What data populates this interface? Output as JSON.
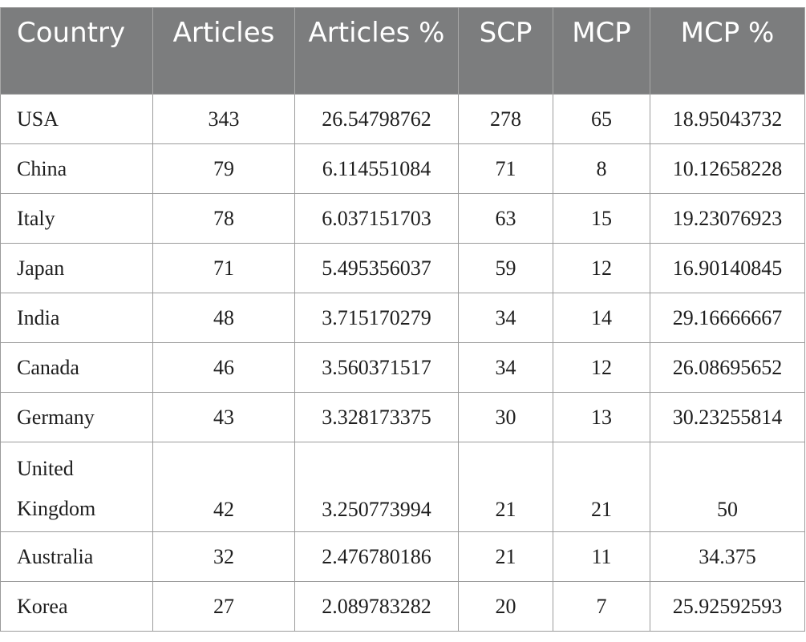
{
  "table": {
    "headers": [
      "Country",
      "Articles",
      "Articles %",
      "SCP",
      "MCP",
      "MCP %"
    ],
    "rows": [
      [
        "USA",
        "343",
        "26.54798762",
        "278",
        "65",
        "18.95043732"
      ],
      [
        "China",
        "79",
        "6.114551084",
        "71",
        "8",
        "10.12658228"
      ],
      [
        "Italy",
        "78",
        "6.037151703",
        "63",
        "15",
        "19.23076923"
      ],
      [
        "Japan",
        "71",
        "5.495356037",
        "59",
        "12",
        "16.90140845"
      ],
      [
        "India",
        "48",
        "3.715170279",
        "34",
        "14",
        "29.16666667"
      ],
      [
        "Canada",
        "46",
        "3.560371517",
        "34",
        "12",
        "26.08695652"
      ],
      [
        "Germany",
        "43",
        "3.328173375",
        "30",
        "13",
        "30.23255814"
      ],
      [
        "United Kingdom",
        "42",
        "3.250773994",
        "21",
        "21",
        "50"
      ],
      [
        "Australia",
        "32",
        "2.476780186",
        "21",
        "11",
        "34.375"
      ],
      [
        "Korea",
        "27",
        "2.089783282",
        "20",
        "7",
        "25.92592593"
      ]
    ]
  },
  "colors": {
    "header_bg": "#7c7d7e",
    "header_text": "#ffffff",
    "border": "#9b9b9b"
  }
}
